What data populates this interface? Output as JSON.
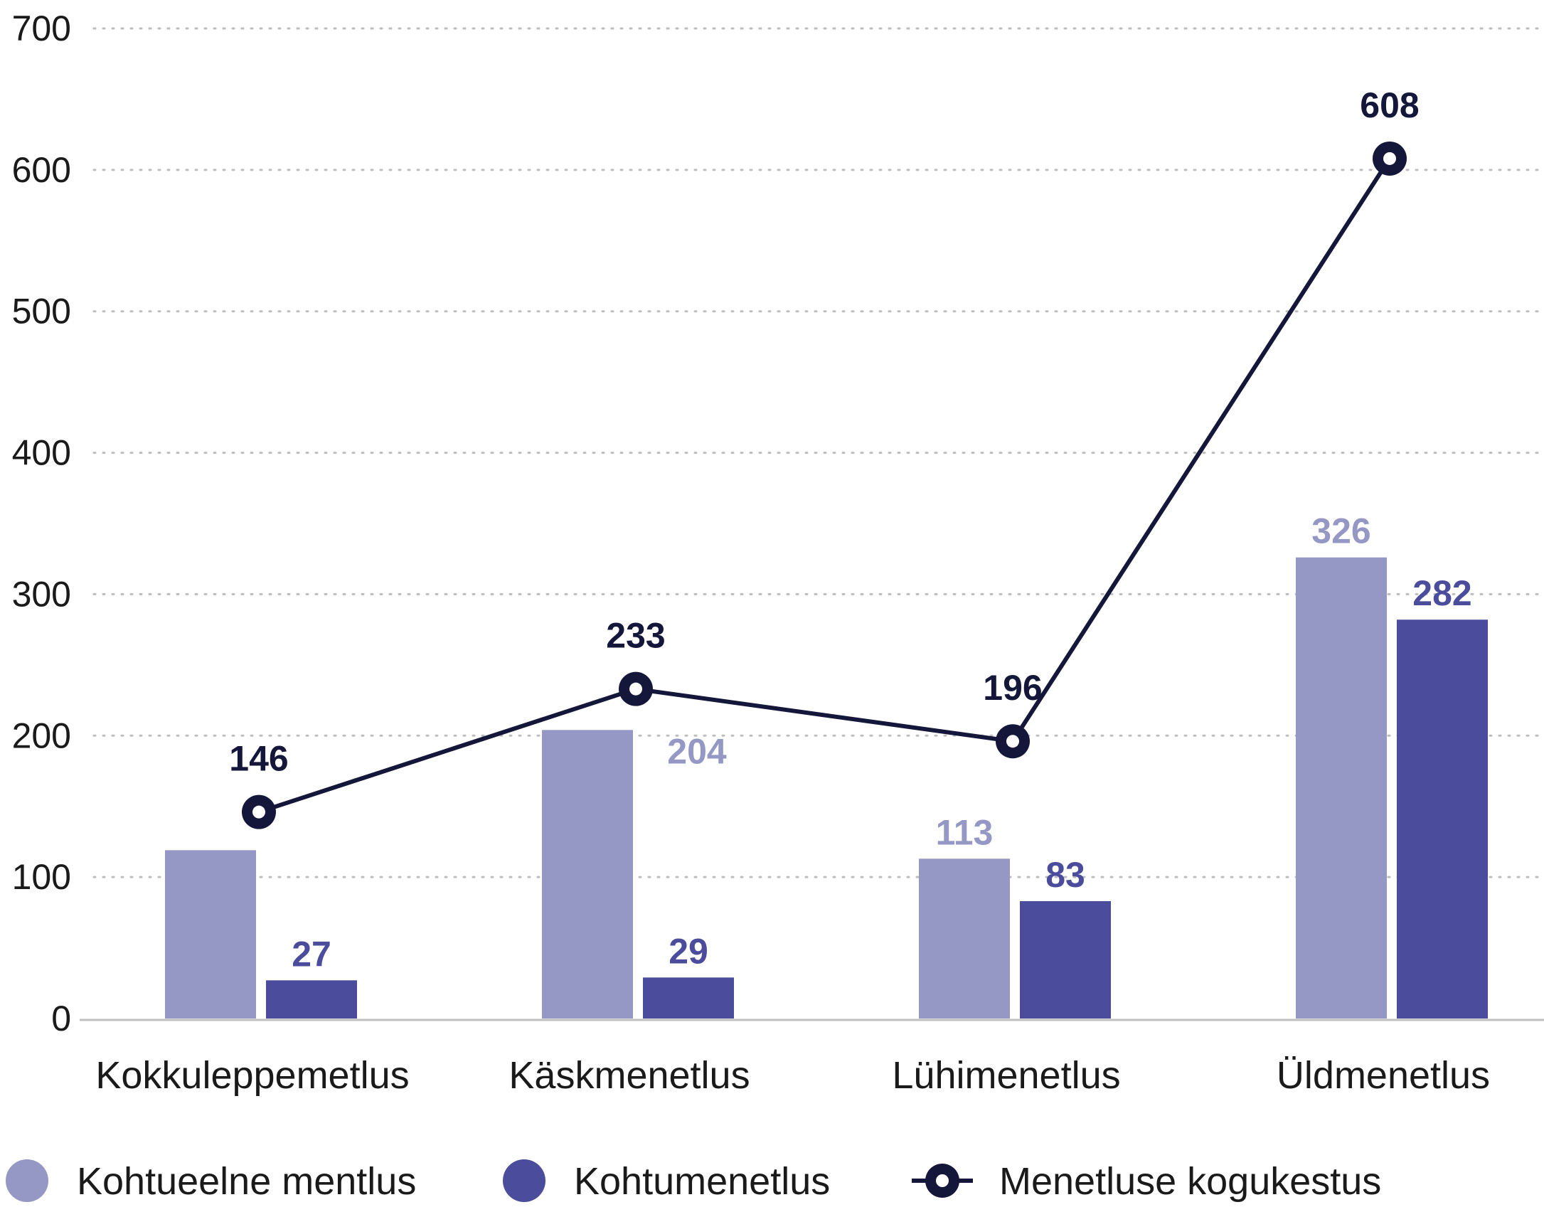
{
  "chart_data": {
    "type": "bar",
    "categories": [
      "Kokkuleppemetlus",
      "Käskmenetlus",
      "Lühimenetlus",
      "Üldmenetlus"
    ],
    "ylim": [
      0,
      700
    ],
    "yticks": [
      0,
      100,
      200,
      300,
      400,
      500,
      600,
      700
    ],
    "grid": true,
    "legend_position": "bottom",
    "series": [
      {
        "name": "Kohtueelne mentlus",
        "type": "bar",
        "color": "#9597c4",
        "values": [
          119,
          204,
          113,
          326
        ],
        "labels": [
          "",
          "204",
          "113",
          "326"
        ]
      },
      {
        "name": "Kohtumenetlus",
        "type": "bar",
        "color": "#4b4c9c",
        "values": [
          27,
          29,
          83,
          282
        ],
        "labels": [
          "27",
          "29",
          "83",
          "282"
        ]
      },
      {
        "name": "Menetluse kogukestus",
        "type": "line",
        "color": "#14163a",
        "values": [
          146,
          233,
          196,
          608
        ],
        "labels": [
          "146",
          "233",
          "196",
          "608"
        ]
      }
    ]
  }
}
